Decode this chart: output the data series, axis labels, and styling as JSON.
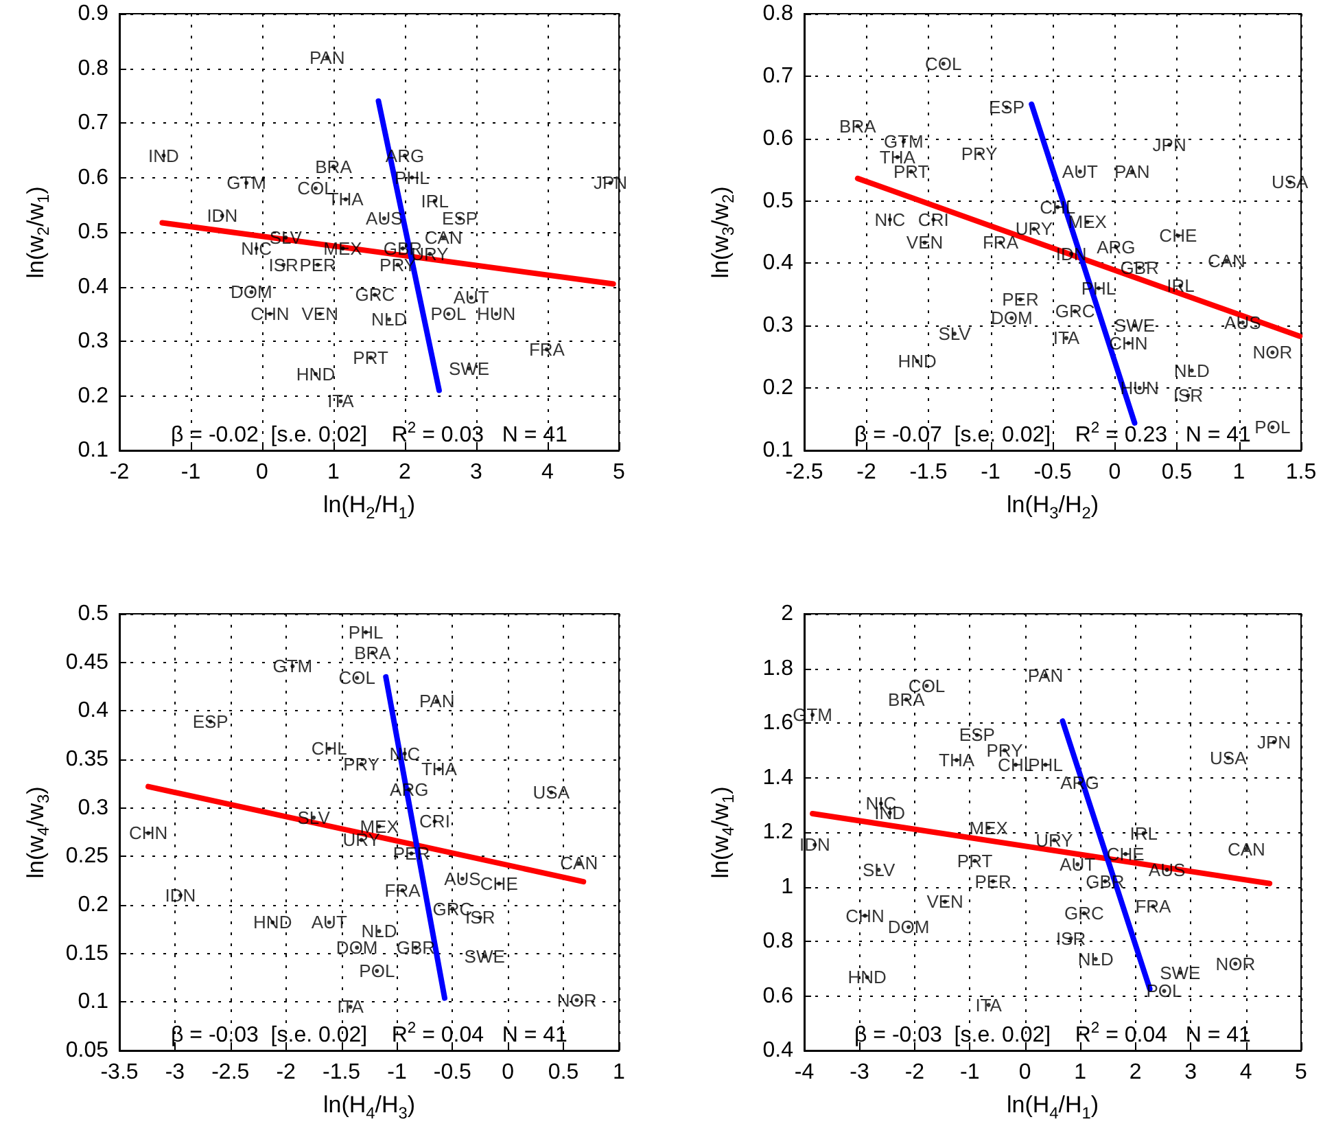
{
  "chart_data": [
    {
      "type": "scatter",
      "xlabel": "ln(H$_{2}$/H$_{1}$)",
      "ylabel": "ln(w$_{2}$/w$_{1}$)",
      "annotations": [
        "β = -0.02  [s.e. 0.02]    R$^{2}$ = 0.03   N = 41"
      ],
      "xlim": [
        -2,
        5
      ],
      "ylim": [
        0.1,
        0.9
      ],
      "xticks": [
        -2,
        -1,
        0,
        1,
        2,
        3,
        4,
        5
      ],
      "yticks": [
        0.1,
        0.2,
        0.3,
        0.4,
        0.5,
        0.6,
        0.7,
        0.8,
        0.9
      ],
      "grid": true,
      "series": [
        {
          "type": "scatter",
          "marker": "circle",
          "color": "#000000",
          "x": [
            0.91,
            -1.38,
            -0.22,
            0.75,
            1.17,
            1.0,
            2.0,
            2.1,
            2.42,
            1.71,
            2.77,
            2.54,
            4.88,
            -0.56,
            -0.08,
            0.33,
            1.13,
            1.97,
            2.35,
            0.3,
            0.78,
            1.9,
            -0.15,
            1.58,
            2.61,
            2.93,
            3.28,
            0.11,
            0.81,
            1.78,
            3.99,
            1.52,
            2.9,
            0.75,
            1.1
          ],
          "values": [
            0.82,
            0.64,
            0.59,
            0.58,
            0.56,
            0.62,
            0.64,
            0.6,
            0.557,
            0.525,
            0.525,
            0.49,
            0.59,
            0.53,
            0.47,
            0.49,
            0.47,
            0.47,
            0.46,
            0.44,
            0.44,
            0.44,
            0.39,
            0.385,
            0.35,
            0.38,
            0.35,
            0.35,
            0.35,
            0.34,
            0.285,
            0.27,
            0.25,
            0.24,
            0.19
          ],
          "value_labels": [
            "PAN",
            "IND",
            "GTM",
            "COL",
            "THA",
            "BRA",
            "ARG",
            "PHL",
            "IRL",
            "AUS",
            "ESP",
            "CAN",
            "JPN",
            "IDN",
            "NIC",
            "SLV",
            "MEX",
            "GBR",
            "URY",
            "ISR",
            "PER",
            "PRY",
            "DOM",
            "GRC",
            "POL",
            "AUT",
            "HUN",
            "CHN",
            "VEN",
            "NLD",
            "FRA",
            "PRT",
            "SWE",
            "HND",
            "ITA"
          ]
        },
        {
          "type": "line",
          "color": "#ff0000",
          "x": [
            -1.4,
            4.92
          ],
          "values": [
            0.517,
            0.405
          ]
        },
        {
          "type": "line",
          "color": "#0000ff",
          "x": [
            1.63,
            2.48
          ],
          "values": [
            0.74,
            0.21
          ]
        }
      ]
    },
    {
      "type": "scatter",
      "xlabel": "ln(H$_{3}$/H$_{2}$)",
      "ylabel": "ln(w$_{3}$/w$_{2}$)",
      "annotations": [
        "β = -0.07  [s.e. 0.02]    R$^{2}$ = 0.23   N = 41"
      ],
      "xlim": [
        -2.5,
        1.5
      ],
      "ylim": [
        0.1,
        0.8
      ],
      "xticks": [
        -2.5,
        -2,
        -1.5,
        -1,
        -0.5,
        0,
        0.5,
        1,
        1.5
      ],
      "yticks": [
        0.1,
        0.2,
        0.3,
        0.4,
        0.5,
        0.6,
        0.7,
        0.8
      ],
      "grid": true,
      "series": [
        {
          "type": "scatter",
          "marker": "circle",
          "color": "#000000",
          "x": [
            -1.38,
            -0.87,
            -2.07,
            -1.7,
            -1.09,
            -1.75,
            -1.64,
            0.44,
            -0.28,
            0.14,
            1.41,
            -1.81,
            -1.46,
            -0.46,
            -0.22,
            -0.65,
            -1.53,
            -0.92,
            0.01,
            -0.35,
            0.51,
            0.9,
            0.2,
            -0.13,
            0.53,
            -0.76,
            -0.32,
            -0.83,
            0.16,
            1.03,
            -1.29,
            -0.39,
            0.11,
            1.27,
            -1.59,
            0.62,
            0.2,
            0.59,
            1.27
          ],
          "values": [
            0.72,
            0.65,
            0.62,
            0.595,
            0.576,
            0.57,
            0.547,
            0.59,
            0.547,
            0.547,
            0.53,
            0.47,
            0.47,
            0.49,
            0.466,
            0.455,
            0.433,
            0.433,
            0.426,
            0.415,
            0.444,
            0.404,
            0.393,
            0.36,
            0.364,
            0.342,
            0.323,
            0.312,
            0.3,
            0.305,
            0.287,
            0.28,
            0.272,
            0.257,
            0.243,
            0.228,
            0.2,
            0.188,
            0.137
          ],
          "value_labels": [
            "COL",
            "ESP",
            "BRA",
            "GTM",
            "PRY",
            "THA",
            "PRT",
            "JPN",
            "AUT",
            "PAN",
            "USA",
            "NIC",
            "CRI",
            "CHL",
            "MEX",
            "URY",
            "VEN",
            "FRA",
            "ARG",
            "IDN",
            "CHE",
            "CAN",
            "GBR",
            "PHL",
            "IRL",
            "PER",
            "GRC",
            "DOM",
            "SWE",
            "AUS",
            "SLV",
            "ITA",
            "CHN",
            "NOR",
            "HND",
            "NLD",
            "HUN",
            "ISR",
            "POL"
          ]
        },
        {
          "type": "line",
          "color": "#ff0000",
          "x": [
            -2.07,
            1.49
          ],
          "values": [
            0.536,
            0.283
          ]
        },
        {
          "type": "line",
          "color": "#0000ff",
          "x": [
            -0.67,
            0.16
          ],
          "values": [
            0.655,
            0.144
          ]
        }
      ]
    },
    {
      "type": "scatter",
      "xlabel": "ln(H$_{4}$/H$_{3}$)",
      "ylabel": "ln(w$_{4}$/w$_{3}$)",
      "annotations": [
        "β = -0.03  [s.e. 0.02]    R$^{2}$ = 0.04   N = 41"
      ],
      "xlim": [
        -3.5,
        1
      ],
      "ylim": [
        0.05,
        0.5
      ],
      "xticks": [
        -3.5,
        -3,
        -2.5,
        -2,
        -1.5,
        -1,
        -0.5,
        0,
        0.5,
        1
      ],
      "yticks": [
        0.05,
        0.1,
        0.15,
        0.2,
        0.25,
        0.3,
        0.35,
        0.4,
        0.45,
        0.5
      ],
      "grid": true,
      "series": [
        {
          "type": "scatter",
          "marker": "circle",
          "color": "#000000",
          "x": [
            -1.28,
            -1.22,
            -1.94,
            -1.36,
            -0.64,
            -2.68,
            -1.61,
            -0.93,
            -1.32,
            -0.62,
            -0.89,
            0.39,
            -3.24,
            -1.75,
            -1.16,
            -0.66,
            -1.32,
            -0.87,
            0.64,
            -0.41,
            -0.08,
            -0.95,
            -2.95,
            -0.5,
            -0.25,
            -2.12,
            -1.61,
            -1.16,
            -1.36,
            -0.83,
            -0.21,
            -1.18,
            0.62,
            -1.42
          ],
          "values": [
            0.481,
            0.46,
            0.446,
            0.434,
            0.41,
            0.389,
            0.361,
            0.356,
            0.345,
            0.34,
            0.319,
            0.316,
            0.274,
            0.29,
            0.281,
            0.286,
            0.267,
            0.253,
            0.243,
            0.227,
            0.222,
            0.215,
            0.21,
            0.196,
            0.187,
            0.182,
            0.182,
            0.173,
            0.156,
            0.156,
            0.147,
            0.132,
            0.102,
            0.095
          ],
          "value_labels": [
            "PHL",
            "BRA",
            "GTM",
            "COL",
            "PAN",
            "ESP",
            "CHL",
            "NIC",
            "PRY",
            "THA",
            "ARG",
            "USA",
            "CHN",
            "SLV",
            "MEX",
            "CRI",
            "URY",
            "PER",
            "CAN",
            "AUS",
            "CHE",
            "FRA",
            "IDN",
            "GRC",
            "ISR",
            "HND",
            "AUT",
            "NLD",
            "DOM",
            "GBR",
            "SWE",
            "POL",
            "NOR",
            "ITA"
          ]
        },
        {
          "type": "line",
          "color": "#ff0000",
          "x": [
            -3.24,
            0.68
          ],
          "values": [
            0.322,
            0.224
          ]
        },
        {
          "type": "line",
          "color": "#0000ff",
          "x": [
            -1.1,
            -0.57
          ],
          "values": [
            0.435,
            0.104
          ]
        }
      ]
    },
    {
      "type": "scatter",
      "xlabel": "ln(H$_{4}$/H$_{1}$)",
      "ylabel": "ln(w$_{4}$/w$_{1}$)",
      "annotations": [
        "β = -0.03  [s.e. 0.02]    R$^{2}$ = 0.04   N = 41"
      ],
      "xlim": [
        -4,
        5
      ],
      "ylim": [
        0.4,
        2
      ],
      "xticks": [
        -4,
        -3,
        -2,
        -1,
        0,
        1,
        2,
        3,
        4,
        5
      ],
      "yticks": [
        0.4,
        0.6,
        0.8,
        1,
        1.2,
        1.4,
        1.6,
        1.8,
        2
      ],
      "grid": true,
      "series": [
        {
          "type": "scatter",
          "marker": "circle",
          "color": "#000000",
          "x": [
            0.37,
            -1.78,
            -2.15,
            -3.85,
            -0.87,
            -0.37,
            -1.24,
            -0.17,
            0.37,
            0.99,
            4.51,
            3.68,
            -2.61,
            -2.45,
            -3.81,
            -0.66,
            0.53,
            2.15,
            4.01,
            -0.91,
            -2.65,
            0.95,
            1.82,
            2.57,
            -0.58,
            1.45,
            -1.45,
            2.32,
            1.07,
            -2.9,
            -2.11,
            0.83,
            1.28,
            2.81,
            3.81,
            -2.86,
            2.52,
            -0.66
          ],
          "values": [
            1.774,
            1.736,
            1.686,
            1.63,
            1.556,
            1.5,
            1.464,
            1.447,
            1.447,
            1.38,
            1.53,
            1.472,
            1.305,
            1.271,
            1.154,
            1.216,
            1.171,
            1.196,
            1.138,
            1.095,
            1.062,
            1.082,
            1.12,
            1.062,
            1.02,
            1.02,
            0.945,
            0.928,
            0.903,
            0.894,
            0.852,
            0.811,
            0.735,
            0.685,
            0.718,
            0.668,
            0.618,
            0.567
          ],
          "value_labels": [
            "PAN",
            "COL",
            "BRA",
            "GTM",
            "ESP",
            "PRY",
            "THA",
            "CHL",
            "PHL",
            "ARG",
            "JPN",
            "USA",
            "NIC",
            "IND",
            "IDN",
            "MEX",
            "URY",
            "IRL",
            "CAN",
            "PRT",
            "SLV",
            "AUT",
            "CHE",
            "AUS",
            "PER",
            "GBR",
            "VEN",
            "FRA",
            "GRC",
            "CHN",
            "DOM",
            "ISR",
            "NLD",
            "SWE",
            "NOR",
            "HND",
            "POL",
            "ITA"
          ]
        },
        {
          "type": "line",
          "color": "#ff0000",
          "x": [
            -3.85,
            4.43
          ],
          "values": [
            1.268,
            1.012
          ]
        },
        {
          "type": "line",
          "color": "#0000ff",
          "x": [
            0.68,
            2.26
          ],
          "values": [
            1.607,
            0.626
          ]
        }
      ]
    }
  ]
}
